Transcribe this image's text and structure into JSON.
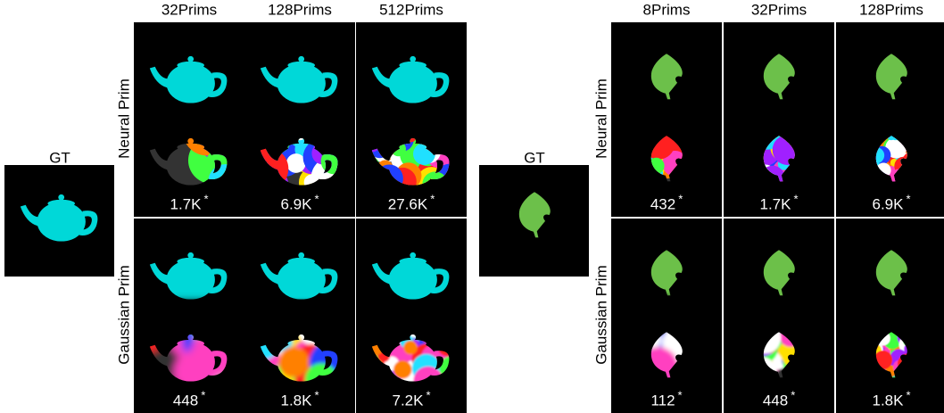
{
  "figure": {
    "panels": [
      {
        "gt_label": "GT",
        "columns": [
          "32Prims",
          "128Prims",
          "512Prims"
        ],
        "count_mark": "*",
        "rows": [
          {
            "label": "Neural Prim",
            "counts": [
              "1.7K",
              "6.9K",
              "27.6K"
            ]
          },
          {
            "label": "Gaussian Prim",
            "counts": [
              "448",
              "1.8K",
              "7.2K"
            ]
          }
        ]
      },
      {
        "gt_label": "GT",
        "columns": [
          "8Prims",
          "32Prims",
          "128Prims"
        ],
        "count_mark": "*",
        "rows": [
          {
            "label": "Neural Prim",
            "counts": [
              "432",
              "1.7K",
              "6.9K"
            ]
          },
          {
            "label": "Gaussian Prim",
            "counts": [
              "112",
              "448",
              "1.8K"
            ]
          }
        ]
      }
    ]
  }
}
